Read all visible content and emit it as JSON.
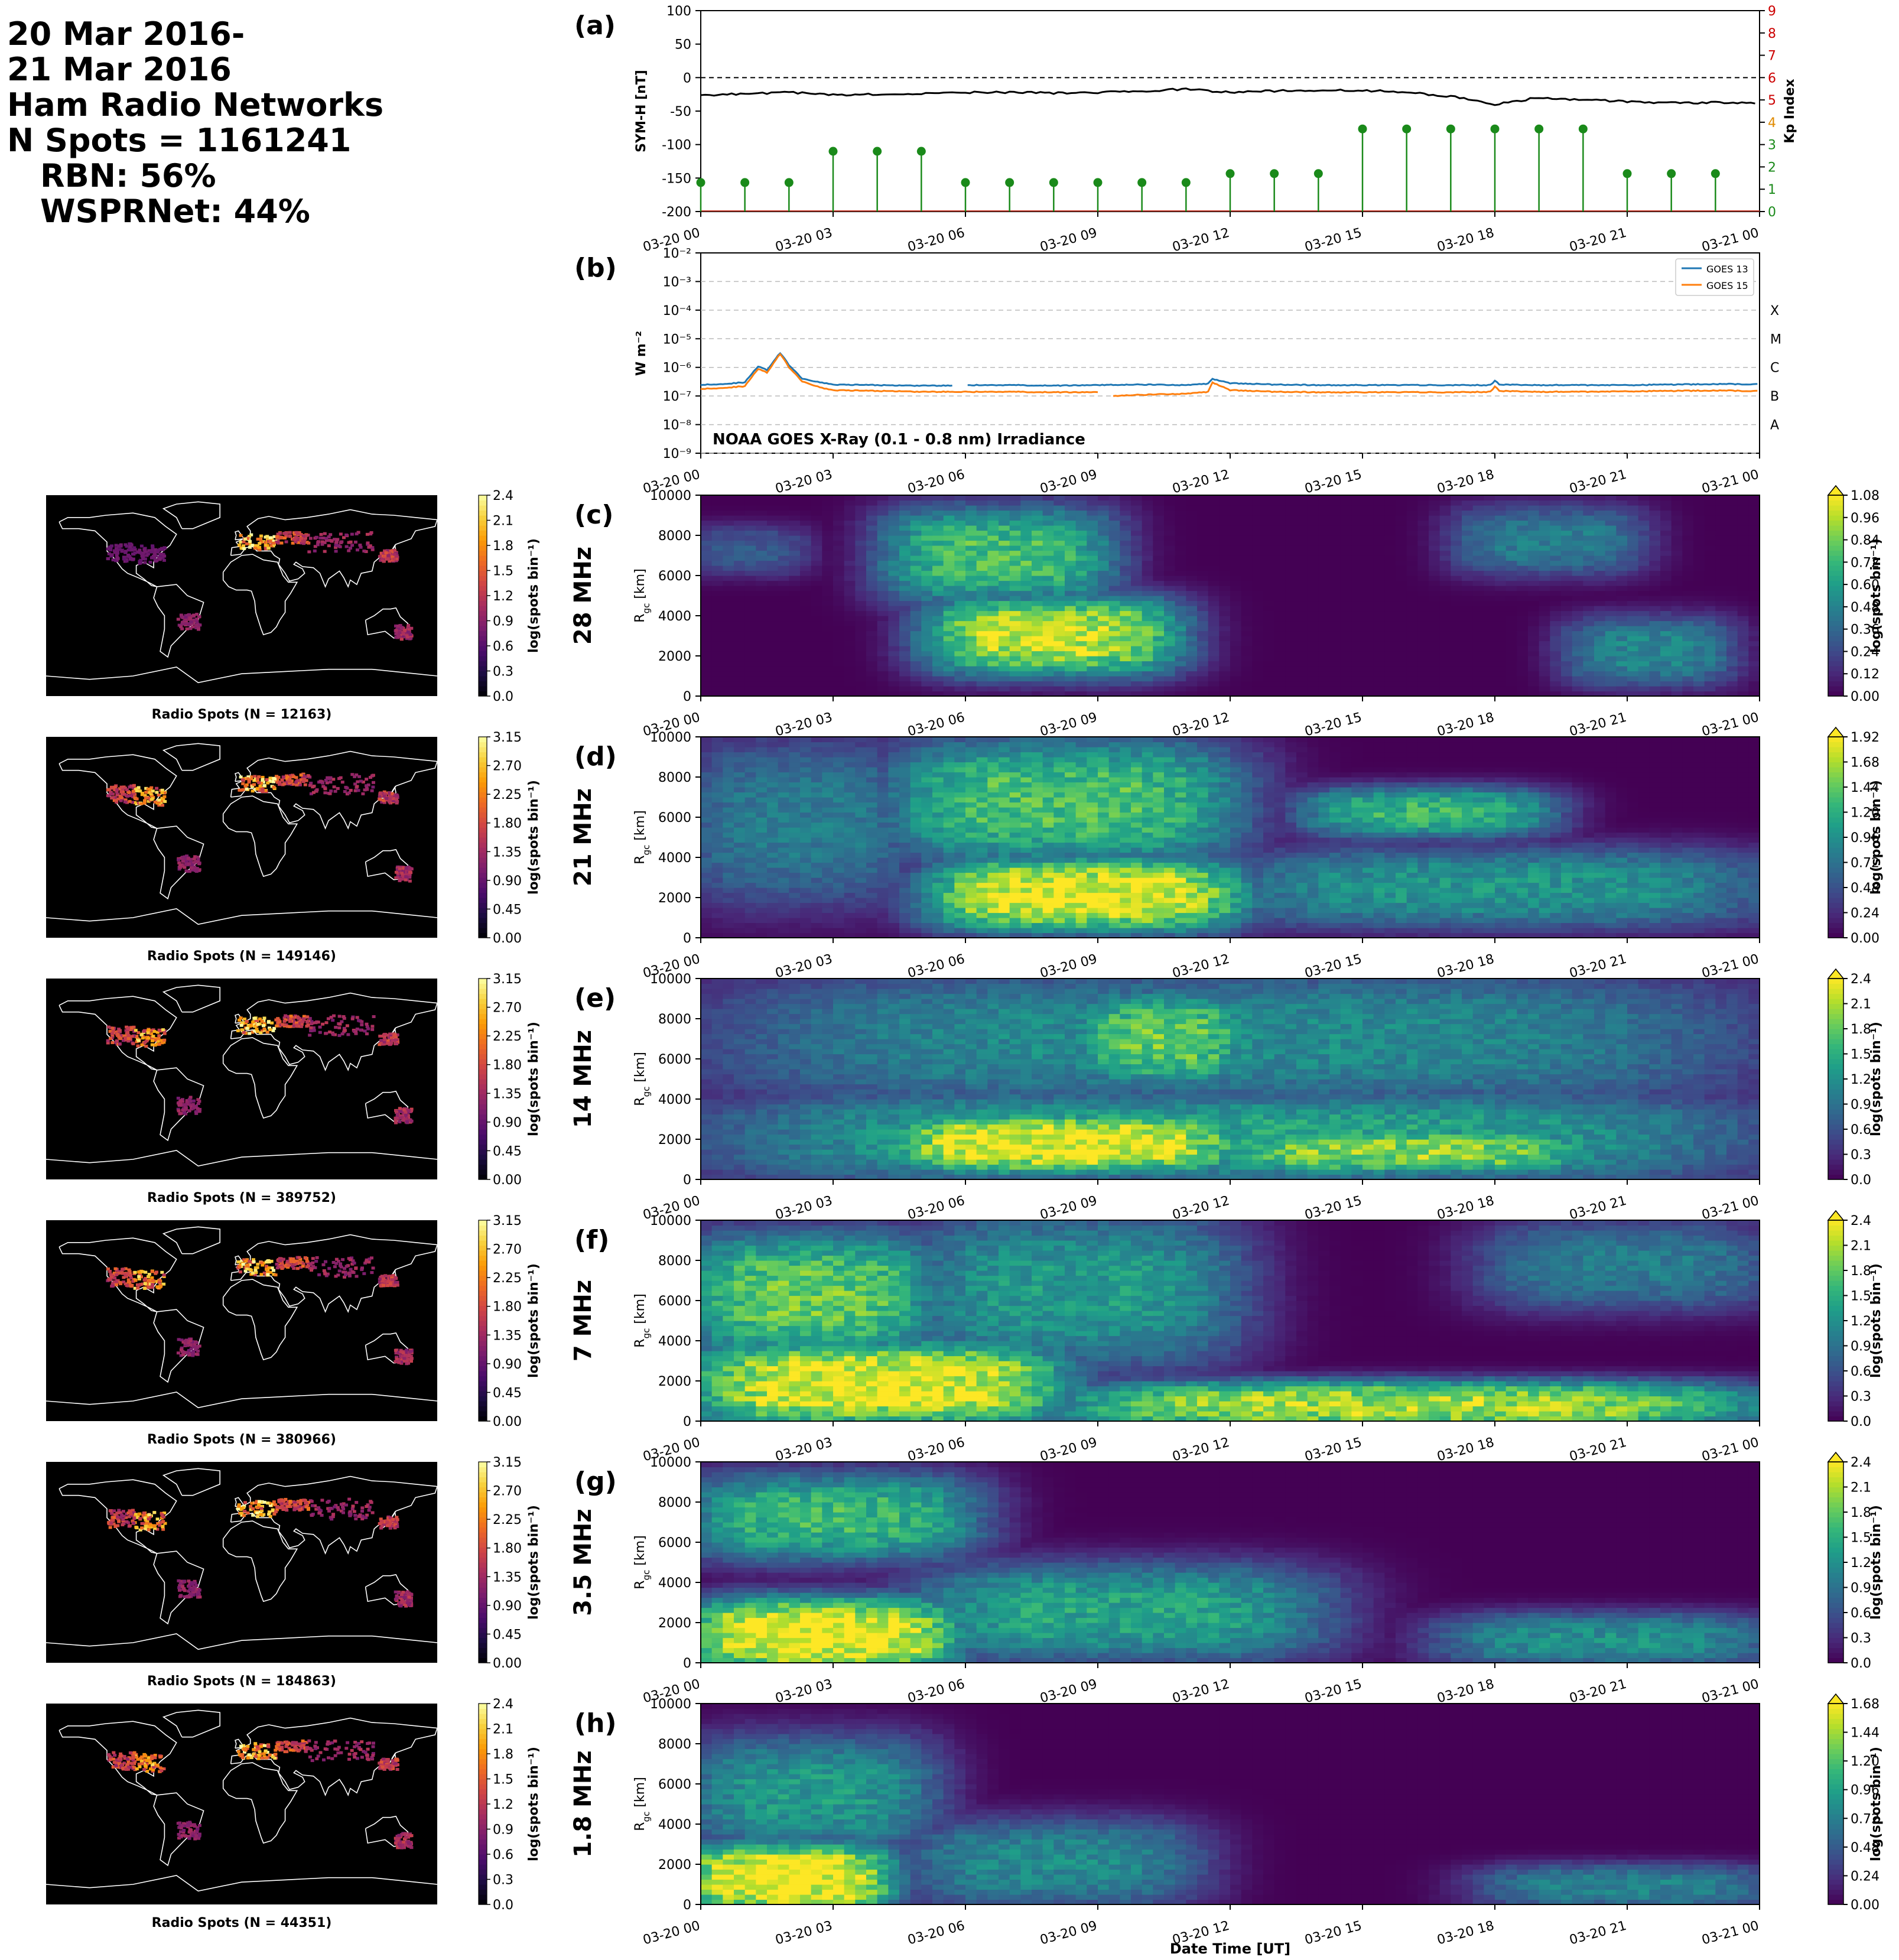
{
  "header": {
    "line1": "20 Mar 2016-",
    "line2": "21 Mar 2016",
    "line3": "Ham Radio Networks",
    "line4": "N Spots = 1161241",
    "line5": "RBN: 56%",
    "line6": "WSPRNet: 44%"
  },
  "colors": {
    "symh": "#000000",
    "kp": "#1a8a1a",
    "kp_axis": "#cc0000",
    "goes13": "#1f77b4",
    "goes15": "#ff7f0e",
    "viridis": [
      "#440154",
      "#482878",
      "#3e4a89",
      "#31688e",
      "#26828e",
      "#1f9e89",
      "#35b779",
      "#6ece58",
      "#b5de2b",
      "#fde725"
    ],
    "inferno": [
      "#000004",
      "#1b0c41",
      "#4a0c6b",
      "#781c6d",
      "#a52c60",
      "#cf4446",
      "#ed6925",
      "#fb9b06",
      "#f7d13d",
      "#fcffa4"
    ]
  },
  "chart_data": {
    "type": "line",
    "time_ticks": [
      "03-20 00",
      "03-20 03",
      "03-20 06",
      "03-20 09",
      "03-20 12",
      "03-20 15",
      "03-20 18",
      "03-20 21",
      "03-21 00"
    ],
    "xlabel": "Date Time [UT]",
    "panel_a": {
      "label": "(a)",
      "ylabel_left": "SYM-H [nT]",
      "ylabel_right": "Kp Index",
      "ylim_left": [
        -200,
        100
      ],
      "yticks_left": [
        "100",
        "50",
        "0",
        "-50",
        "-100",
        "-150",
        "-200"
      ],
      "ylim_right": [
        0,
        9
      ],
      "yticks_right": [
        "0",
        "1",
        "2",
        "3",
        "4",
        "5",
        "6",
        "7",
        "8",
        "9"
      ],
      "symh": {
        "hours": [
          0,
          1,
          2,
          3,
          4,
          5,
          6,
          7,
          8,
          9,
          10,
          11,
          12,
          13,
          14,
          15,
          16,
          17,
          18,
          19,
          20,
          21,
          22,
          23,
          24
        ],
        "values": [
          -27,
          -24,
          -22,
          -26,
          -25,
          -24,
          -22,
          -22,
          -23,
          -22,
          -20,
          -17,
          -22,
          -20,
          -19,
          -19,
          -22,
          -28,
          -40,
          -30,
          -33,
          -36,
          -38,
          -37,
          -38
        ]
      },
      "kp": {
        "hours": [
          0,
          1,
          2,
          3,
          4,
          5,
          6,
          7,
          8,
          9,
          10,
          11,
          12,
          13,
          14,
          15,
          16,
          17,
          18,
          19,
          20,
          21,
          22,
          23
        ],
        "values": [
          1.3,
          1.3,
          1.3,
          2.7,
          2.7,
          2.7,
          1.3,
          1.3,
          1.3,
          1.3,
          1.3,
          1.3,
          1.7,
          1.7,
          1.7,
          3.7,
          3.7,
          3.7,
          3.7,
          3.7,
          3.7,
          1.7,
          1.7,
          1.7
        ]
      }
    },
    "panel_b": {
      "label": "(b)",
      "ylabel": "W m$^{-2}$",
      "ylabel_display": "W m⁻²",
      "yscale": "log",
      "ylim": [
        1e-09,
        0.01
      ],
      "yticks": [
        "10⁻²",
        "10⁻³",
        "10⁻⁴",
        "10⁻⁵",
        "10⁻⁶",
        "10⁻⁷",
        "10⁻⁸",
        "10⁻⁹"
      ],
      "classes": [
        "X",
        "M",
        "C",
        "B",
        "A"
      ],
      "annotation": "NOAA GOES X-Ray (0.1 - 0.8 nm) Irradiance",
      "legend": [
        "GOES 13",
        "GOES 15"
      ],
      "legend_loc": "upper right",
      "goes13": {
        "hours": [
          0,
          0.5,
          1,
          1.3,
          1.5,
          1.8,
          2.0,
          2.3,
          2.8,
          3,
          4,
          4.5,
          5.7,
          6,
          7,
          8,
          9,
          10,
          11,
          11.5,
          11.6,
          12,
          13,
          14,
          15,
          16,
          17,
          17.9,
          18,
          18.1,
          19,
          20,
          21,
          22,
          23,
          24
        ],
        "values": [
          2.5e-07,
          2.6e-07,
          3e-07,
          1.1e-06,
          8e-07,
          3.2e-06,
          1.2e-06,
          4e-07,
          2.8e-07,
          2.5e-07,
          2.4e-07,
          2.3e-07,
          null,
          2.4e-07,
          2.4e-07,
          2.3e-07,
          2.4e-07,
          2.5e-07,
          2.4e-07,
          2.7e-07,
          4e-07,
          2.8e-07,
          2.5e-07,
          2.4e-07,
          2.4e-07,
          2.4e-07,
          2.4e-07,
          2.4e-07,
          3.5e-07,
          2.5e-07,
          2.4e-07,
          2.4e-07,
          2.4e-07,
          2.5e-07,
          2.6e-07,
          2.6e-07
        ]
      },
      "goes15": {
        "hours": [
          0,
          0.5,
          1,
          1.3,
          1.5,
          1.8,
          2.0,
          2.3,
          2.8,
          3,
          4,
          5,
          6,
          7,
          8,
          9,
          9.3,
          10,
          11,
          11.5,
          11.6,
          12,
          13,
          14,
          15,
          16,
          17,
          17.9,
          18,
          18.1,
          19,
          20,
          21,
          22,
          23,
          24
        ],
        "values": [
          1.8e-07,
          1.9e-07,
          2.2e-07,
          9e-07,
          6.5e-07,
          3e-06,
          1e-06,
          3.2e-07,
          1.8e-07,
          1.6e-07,
          1.5e-07,
          1.4e-07,
          1.4e-07,
          1.4e-07,
          1.35e-07,
          null,
          1e-07,
          1.1e-07,
          1.2e-07,
          1.4e-07,
          3e-07,
          1.6e-07,
          1.4e-07,
          1.35e-07,
          1.35e-07,
          1.35e-07,
          1.35e-07,
          1.4e-07,
          2.2e-07,
          1.5e-07,
          1.4e-07,
          1.4e-07,
          1.45e-07,
          1.5e-07,
          1.55e-07,
          1.5e-07
        ]
      }
    },
    "heatmap_panels": [
      {
        "label": "(c)",
        "band": "28 MHz",
        "ylabel": "R_gc [km]",
        "ylim": [
          0,
          10000
        ],
        "yticks": [
          "0",
          "2000",
          "4000",
          "6000",
          "8000",
          "10000"
        ],
        "cbar_ticks": [
          "1.08",
          "0.96",
          "0.84",
          "0.72",
          "0.60",
          "0.48",
          "0.36",
          "0.24",
          "0.12",
          "0.00"
        ],
        "cbar_label": "log(spots bin⁻¹)",
        "vmax": 1.08,
        "map_title": "Radio Spots (N = 12163)",
        "map_cbar_ticks": [
          "2.4",
          "2.1",
          "1.8",
          "1.5",
          "1.2",
          "0.9",
          "0.6",
          "0.3",
          "0.0"
        ],
        "map_vmax": 2.4,
        "blobs": [
          {
            "t": [
              5.5,
              10.5
            ],
            "r": [
              1500,
              4500
            ],
            "v": 1.0
          },
          {
            "t": [
              4.5,
              9
            ],
            "r": [
              5000,
              9000
            ],
            "v": 0.75
          },
          {
            "t": [
              20,
              23
            ],
            "r": [
              1000,
              3500
            ],
            "v": 0.5
          },
          {
            "t": [
              17.5,
              21
            ],
            "r": [
              6500,
              9000
            ],
            "v": 0.45
          },
          {
            "t": [
              0,
              2
            ],
            "r": [
              6500,
              8000
            ],
            "v": 0.3
          }
        ]
      },
      {
        "label": "(d)",
        "band": "21 MHz",
        "ylabel": "R_gc [km]",
        "ylim": [
          0,
          10000
        ],
        "yticks": [
          "0",
          "2000",
          "4000",
          "6000",
          "8000",
          "10000"
        ],
        "cbar_ticks": [
          "1.92",
          "1.68",
          "1.44",
          "1.20",
          "0.96",
          "0.72",
          "0.48",
          "0.24",
          "0.00"
        ],
        "cbar_label": "log(spots bin⁻¹)",
        "vmax": 1.92,
        "map_title": "Radio Spots (N = 149146)",
        "map_cbar_ticks": [
          "3.15",
          "2.70",
          "2.25",
          "1.80",
          "1.35",
          "0.90",
          "0.45",
          "0.00"
        ],
        "map_vmax": 3.15,
        "blobs": [
          {
            "t": [
              5.5,
              12
            ],
            "r": [
              800,
              3500
            ],
            "v": 1.95
          },
          {
            "t": [
              4.5,
              12
            ],
            "r": [
              4000,
              9500
            ],
            "v": 1.35
          },
          {
            "t": [
              14,
              19
            ],
            "r": [
              5500,
              7000
            ],
            "v": 1.25
          },
          {
            "t": [
              12,
              24
            ],
            "r": [
              1000,
              4000
            ],
            "v": 1.0
          },
          {
            "t": [
              0,
              4.5
            ],
            "r": [
              2000,
              9500
            ],
            "v": 0.8
          }
        ]
      },
      {
        "label": "(e)",
        "band": "14 MHz",
        "ylabel": "R_gc [km]",
        "ylim": [
          0,
          10000
        ],
        "yticks": [
          "0",
          "2000",
          "4000",
          "6000",
          "8000",
          "10000"
        ],
        "cbar_ticks": [
          "2.4",
          "2.1",
          "1.8",
          "1.5",
          "1.2",
          "0.9",
          "0.6",
          "0.3",
          "0.0"
        ],
        "cbar_label": "log(spots bin⁻¹)",
        "vmax": 2.4,
        "map_title": "Radio Spots (N = 389752)",
        "map_cbar_ticks": [
          "3.15",
          "2.70",
          "2.25",
          "1.80",
          "1.35",
          "0.90",
          "0.45",
          "0.00"
        ],
        "map_vmax": 3.15,
        "blobs": [
          {
            "t": [
              4.5,
              12
            ],
            "r": [
              800,
              2800
            ],
            "v": 2.45
          },
          {
            "t": [
              12,
              20
            ],
            "r": [
              800,
              2000
            ],
            "v": 2.0
          },
          {
            "t": [
              9,
              12
            ],
            "r": [
              5000,
              9000
            ],
            "v": 1.8
          },
          {
            "t": [
              0,
              24
            ],
            "r": [
              200,
              4000
            ],
            "v": 1.4
          },
          {
            "t": [
              0,
              24
            ],
            "r": [
              4000,
              10000
            ],
            "v": 1.15
          }
        ]
      },
      {
        "label": "(f)",
        "band": "7 MHz",
        "ylabel": "R_gc [km]",
        "ylim": [
          0,
          10000
        ],
        "yticks": [
          "0",
          "2000",
          "4000",
          "6000",
          "8000",
          "10000"
        ],
        "cbar_ticks": [
          "2.4",
          "2.1",
          "1.8",
          "1.5",
          "1.2",
          "0.9",
          "0.6",
          "0.3",
          "0.0"
        ],
        "cbar_label": "log(spots bin⁻¹)",
        "vmax": 2.4,
        "map_title": "Radio Spots (N = 380966)",
        "map_cbar_ticks": [
          "3.15",
          "2.70",
          "2.25",
          "1.80",
          "1.35",
          "0.90",
          "0.45",
          "0.00"
        ],
        "map_vmax": 3.15,
        "blobs": [
          {
            "t": [
              0,
              8
            ],
            "r": [
              200,
              3500
            ],
            "v": 2.4
          },
          {
            "t": [
              0,
              5
            ],
            "r": [
              3500,
              9000
            ],
            "v": 1.8
          },
          {
            "t": [
              8,
              24
            ],
            "r": [
              100,
              1500
            ],
            "v": 2.1
          },
          {
            "t": [
              5,
              12
            ],
            "r": [
              3000,
              10000
            ],
            "v": 1.3
          },
          {
            "t": [
              18,
              24
            ],
            "r": [
              6000,
              9500
            ],
            "v": 1.0
          }
        ]
      },
      {
        "label": "(g)",
        "band": "3.5 MHz",
        "ylabel": "R_gc [km]",
        "ylim": [
          0,
          10000
        ],
        "yticks": [
          "0",
          "2000",
          "4000",
          "6000",
          "8000",
          "10000"
        ],
        "cbar_ticks": [
          "2.4",
          "2.1",
          "1.8",
          "1.5",
          "1.2",
          "0.9",
          "0.6",
          "0.3",
          "0.0"
        ],
        "cbar_label": "log(spots bin⁻¹)",
        "vmax": 2.4,
        "map_title": "Radio Spots (N = 184863)",
        "map_cbar_ticks": [
          "3.15",
          "2.70",
          "2.25",
          "1.80",
          "1.35",
          "0.90",
          "0.45",
          "0.00"
        ],
        "map_vmax": 3.15,
        "blobs": [
          {
            "t": [
              0,
              5.5
            ],
            "r": [
              0,
              2800
            ],
            "v": 2.5
          },
          {
            "t": [
              0,
              6
            ],
            "r": [
              5500,
              9000
            ],
            "v": 1.6
          },
          {
            "t": [
              5,
              14
            ],
            "r": [
              500,
              4500
            ],
            "v": 1.4
          },
          {
            "t": [
              17,
              24
            ],
            "r": [
              300,
              2000
            ],
            "v": 1.2
          }
        ]
      },
      {
        "label": "(h)",
        "band": "1.8 MHz",
        "ylabel": "R_gc [km]",
        "ylim": [
          0,
          10000
        ],
        "yticks": [
          "0",
          "2000",
          "4000",
          "6000",
          "8000",
          "10000"
        ],
        "cbar_ticks": [
          "1.68",
          "1.44",
          "1.20",
          "0.96",
          "0.72",
          "0.48",
          "0.24",
          "0.00"
        ],
        "cbar_label": "log(spots bin⁻¹)",
        "vmax": 1.68,
        "map_title": "Radio Spots (N = 44351)",
        "map_cbar_ticks": [
          "2.4",
          "2.1",
          "1.8",
          "1.5",
          "1.2",
          "0.9",
          "0.6",
          "0.3",
          "0.0"
        ],
        "map_vmax": 2.4,
        "blobs": [
          {
            "t": [
              0,
              4
            ],
            "r": [
              0,
              2600
            ],
            "v": 1.75
          },
          {
            "t": [
              0,
              5
            ],
            "r": [
              3000,
              8000
            ],
            "v": 0.9
          },
          {
            "t": [
              5,
              11
            ],
            "r": [
              300,
              3800
            ],
            "v": 0.8
          },
          {
            "t": [
              18,
              24
            ],
            "r": [
              300,
              1500
            ],
            "v": 0.75
          }
        ]
      }
    ]
  }
}
